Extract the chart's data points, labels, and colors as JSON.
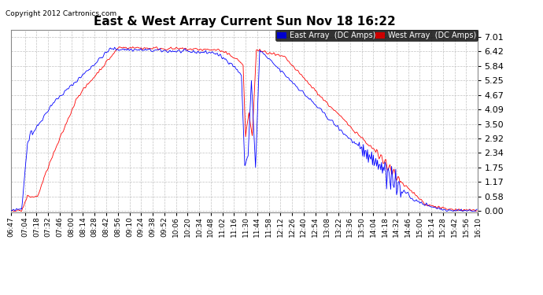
{
  "title": "East & West Array Current Sun Nov 18 16:22",
  "copyright": "Copyright 2012 Cartronics.com",
  "legend_east": "East Array  (DC Amps)",
  "legend_west": "West Array  (DC Amps)",
  "east_color": "#0000ff",
  "west_color": "#ff0000",
  "legend_east_bg": "#0000cc",
  "legend_west_bg": "#cc0000",
  "yticks": [
    0.0,
    0.58,
    1.17,
    1.75,
    2.34,
    2.92,
    3.5,
    4.09,
    4.67,
    5.25,
    5.84,
    6.42,
    7.01
  ],
  "ylim": [
    -0.05,
    7.3
  ],
  "background_color": "#ffffff",
  "grid_color": "#bbbbbb",
  "xtick_labels": [
    "06:47",
    "07:04",
    "07:18",
    "07:32",
    "07:46",
    "08:00",
    "08:14",
    "08:28",
    "08:42",
    "08:56",
    "09:10",
    "09:24",
    "09:38",
    "09:52",
    "10:06",
    "10:20",
    "10:34",
    "10:48",
    "11:02",
    "11:16",
    "11:30",
    "11:44",
    "11:58",
    "12:12",
    "12:26",
    "12:40",
    "12:54",
    "13:08",
    "13:22",
    "13:36",
    "13:50",
    "14:04",
    "14:18",
    "14:32",
    "14:46",
    "15:00",
    "15:14",
    "15:28",
    "15:42",
    "15:56",
    "16:10"
  ]
}
